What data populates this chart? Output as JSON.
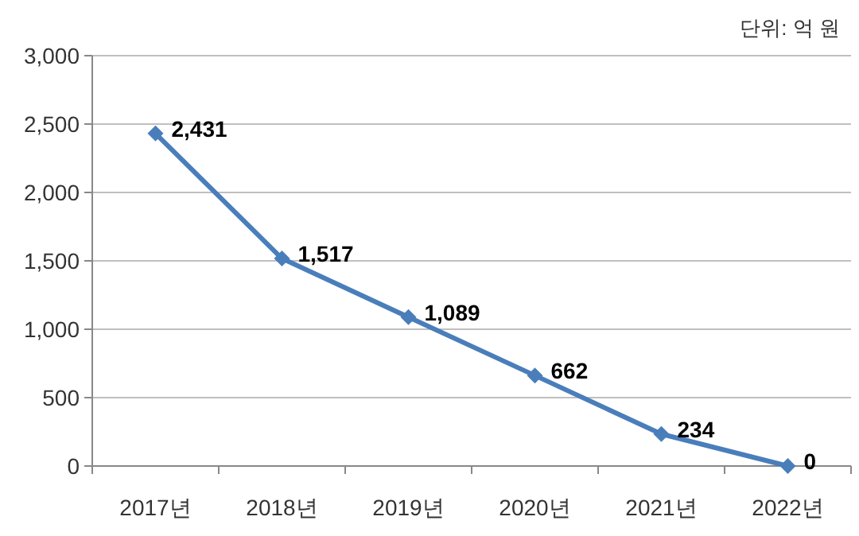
{
  "chart_data": {
    "type": "line",
    "categories": [
      "2017년",
      "2018년",
      "2019년",
      "2020년",
      "2021년",
      "2022년"
    ],
    "series": [
      {
        "color": "#4a7ebb",
        "values": [
          2431,
          1517,
          1089,
          662,
          234,
          0
        ],
        "value_labels": [
          "2,431",
          "1,517",
          "1,089",
          "662",
          "234",
          "0"
        ]
      }
    ],
    "ylim": [
      0,
      3000
    ],
    "yticks": [
      {
        "value": 0,
        "label": "0"
      },
      {
        "value": 500,
        "label": "500"
      },
      {
        "value": 1000,
        "label": "1,000"
      },
      {
        "value": 1500,
        "label": "1,500"
      },
      {
        "value": 2000,
        "label": "2,000"
      },
      {
        "value": 2500,
        "label": "2,500"
      },
      {
        "value": 3000,
        "label": "3,000"
      }
    ],
    "grid": "y",
    "marker": "diamond",
    "annotations": [
      "단위: 억 원"
    ]
  }
}
